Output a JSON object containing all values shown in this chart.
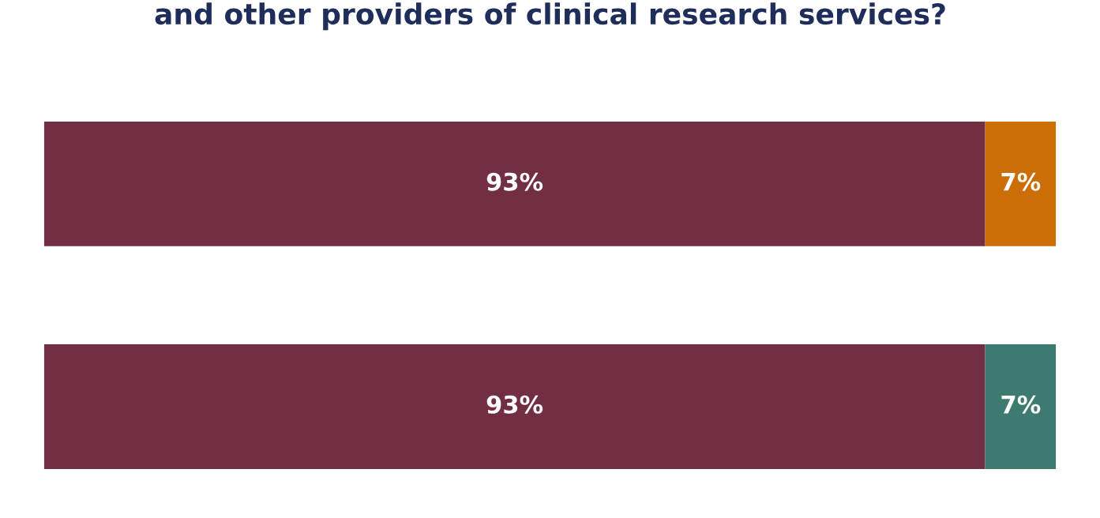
{
  "chart_data": {
    "type": "bar",
    "orientation": "horizontal",
    "stacked": true,
    "title": "and other providers of clinical research services?",
    "categories": [
      null,
      null
    ],
    "series": [
      {
        "colors": [
          "#722f43",
          "#722f43"
        ],
        "values": [
          93,
          93
        ],
        "value_labels": [
          "93%",
          "93%"
        ]
      },
      {
        "colors": [
          "#cc6e08",
          "#3d7a70"
        ],
        "values": [
          7,
          7
        ],
        "value_labels": [
          "7%",
          "7%"
        ]
      }
    ]
  }
}
